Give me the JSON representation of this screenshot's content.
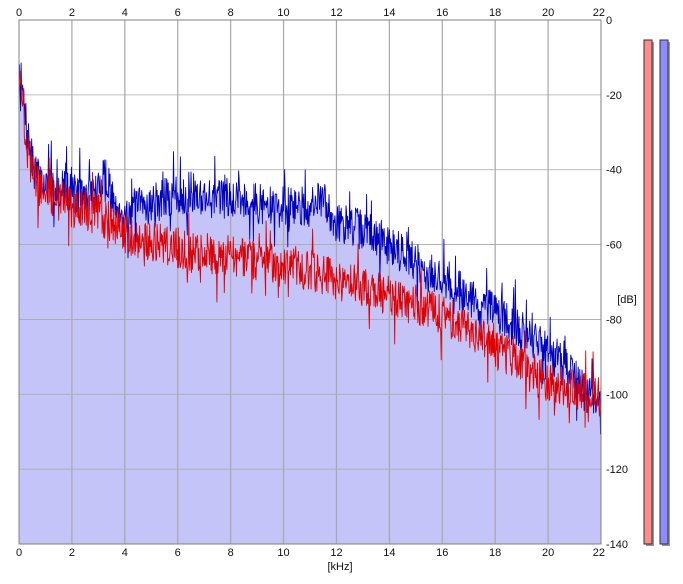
{
  "chart_data": {
    "type": "area",
    "title": "",
    "xlabel": "[kHz]",
    "ylabel": "[dB]",
    "xlim": [
      0,
      22
    ],
    "ylim": [
      -140,
      0
    ],
    "x_ticks": [
      "0",
      "2",
      "4",
      "6",
      "8",
      "10",
      "12",
      "14",
      "16",
      "18",
      "20",
      "22"
    ],
    "y_ticks": [
      "0",
      "-20",
      "-40",
      "-60",
      "-80",
      "-100",
      "-120",
      "-140"
    ],
    "x_tick_values": [
      0,
      2,
      4,
      6,
      8,
      10,
      12,
      14,
      16,
      18,
      20,
      22
    ],
    "y_tick_values": [
      0,
      -20,
      -40,
      -60,
      -80,
      -100,
      -120,
      -140
    ],
    "grid": true,
    "colors": {
      "background": "#ffffff",
      "area_fill": "#c4c4f8",
      "gridline": "#a8a8a8",
      "series_blue": "#0000c0",
      "series_red": "#e00000",
      "meter_left": "#ff8c8c",
      "meter_right": "#8c8cff"
    },
    "series": [
      {
        "color": "#0000c0",
        "x": [
          0,
          0.1,
          0.2,
          0.3,
          0.5,
          0.7,
          1,
          1.5,
          2,
          2.5,
          3,
          3.2,
          3.5,
          4,
          4.5,
          5,
          5.5,
          6,
          6.5,
          7,
          7.5,
          8,
          8.5,
          9,
          9.5,
          10,
          10.5,
          11,
          11.5,
          12,
          12.5,
          13,
          13.5,
          14,
          14.5,
          15,
          15.5,
          16,
          16.5,
          17,
          17.5,
          18,
          18.5,
          19,
          19.5,
          20,
          20.5,
          21,
          21.5,
          22
        ],
        "y": [
          -12,
          -18,
          -24,
          -30,
          -38,
          -42,
          -44,
          -45,
          -46,
          -47,
          -46,
          -40,
          -48,
          -52,
          -50,
          -49,
          -48,
          -47,
          -46,
          -47,
          -48,
          -47,
          -48,
          -49,
          -50,
          -50,
          -50,
          -50,
          -48,
          -54,
          -55,
          -56,
          -58,
          -60,
          -62,
          -65,
          -68,
          -69,
          -71,
          -74,
          -77,
          -78,
          -80,
          -83,
          -86,
          -88,
          -92,
          -96,
          -100,
          -103
        ]
      },
      {
        "color": "#e00000",
        "x": [
          0,
          0.1,
          0.2,
          0.3,
          0.5,
          0.7,
          1,
          1.5,
          2,
          2.5,
          3,
          3.5,
          4,
          4.5,
          5,
          5.5,
          6,
          6.5,
          7,
          7.5,
          8,
          8.5,
          9,
          9.5,
          10,
          10.5,
          11,
          11.5,
          12,
          12.5,
          13,
          13.5,
          14,
          14.5,
          15,
          15.5,
          16,
          16.5,
          17,
          17.5,
          18,
          18.5,
          19,
          19.5,
          20,
          20.5,
          21,
          21.5,
          22
        ],
        "y": [
          -13,
          -20,
          -28,
          -34,
          -40,
          -44,
          -46,
          -48,
          -50,
          -51,
          -52,
          -54,
          -57,
          -58,
          -59,
          -60,
          -61,
          -62,
          -62,
          -63,
          -63,
          -63,
          -64,
          -65,
          -66,
          -66,
          -67,
          -68,
          -70,
          -70,
          -71,
          -72,
          -74,
          -75,
          -76,
          -77,
          -79,
          -80,
          -82,
          -85,
          -88,
          -90,
          -93,
          -95,
          -97,
          -98,
          -99,
          -100,
          -101
        ]
      }
    ],
    "meters": [
      {
        "color": "#ff8c8c",
        "level": 1.0
      },
      {
        "color": "#8c8cff",
        "level": 1.0
      }
    ]
  }
}
